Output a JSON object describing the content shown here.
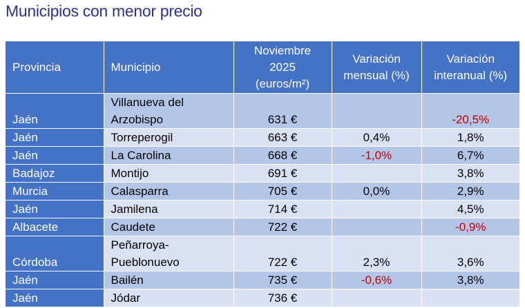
{
  "title": "Municipios con menor precio",
  "headers": {
    "provincia": "Provincia",
    "municipio": "Municipio",
    "precio_line1": "Noviembre",
    "precio_line2": "2025",
    "precio_line3": "(euros/m²)",
    "mensual_line1": "Variación",
    "mensual_line2": "mensual (%)",
    "interanual_line1": "Variación",
    "interanual_line2": "interanual (%)"
  },
  "rows": [
    {
      "provincia": "Jaén",
      "municipio_line1": "Villanueva del",
      "municipio_line2": "Arzobispo",
      "precio": "631 €",
      "mensual": "",
      "interanual": "-20,5%"
    },
    {
      "provincia": "Jaén",
      "municipio_line1": "Torreperogil",
      "municipio_line2": "",
      "precio": "663 €",
      "mensual": "0,4%",
      "interanual": "1,8%"
    },
    {
      "provincia": "Jaén",
      "municipio_line1": "La Carolina",
      "municipio_line2": "",
      "precio": "668 €",
      "mensual": "-1,0%",
      "interanual": "6,7%"
    },
    {
      "provincia": "Badajoz",
      "municipio_line1": "Montijo",
      "municipio_line2": "",
      "precio": "691 €",
      "mensual": "",
      "interanual": "3,8%"
    },
    {
      "provincia": "Murcia",
      "municipio_line1": "Calasparra",
      "municipio_line2": "",
      "precio": "705 €",
      "mensual": "0,0%",
      "interanual": "2,9%"
    },
    {
      "provincia": "Jaén",
      "municipio_line1": "Jamilena",
      "municipio_line2": "",
      "precio": "714 €",
      "mensual": "",
      "interanual": "4,5%"
    },
    {
      "provincia": "Albacete",
      "municipio_line1": "Caudete",
      "municipio_line2": "",
      "precio": "722 €",
      "mensual": "",
      "interanual": "-0,9%"
    },
    {
      "provincia": "Córdoba",
      "municipio_line1": "Peñarroya-",
      "municipio_line2": "Pueblonuevo",
      "precio": "722 €",
      "mensual": "2,3%",
      "interanual": "3,6%"
    },
    {
      "provincia": "Jaén",
      "municipio_line1": "Bailén",
      "municipio_line2": "",
      "precio": "735 €",
      "mensual": "-0,6%",
      "interanual": "3,8%"
    },
    {
      "provincia": "Jaén",
      "municipio_line1": "Jódar",
      "municipio_line2": "",
      "precio": "736 €",
      "mensual": "",
      "interanual": ""
    }
  ],
  "colors": {
    "header": "#4472c4",
    "row_dark": "#b4c6e7",
    "row_light": "#d9e1f2",
    "negative": "#c00000",
    "title": "#2e3192"
  }
}
